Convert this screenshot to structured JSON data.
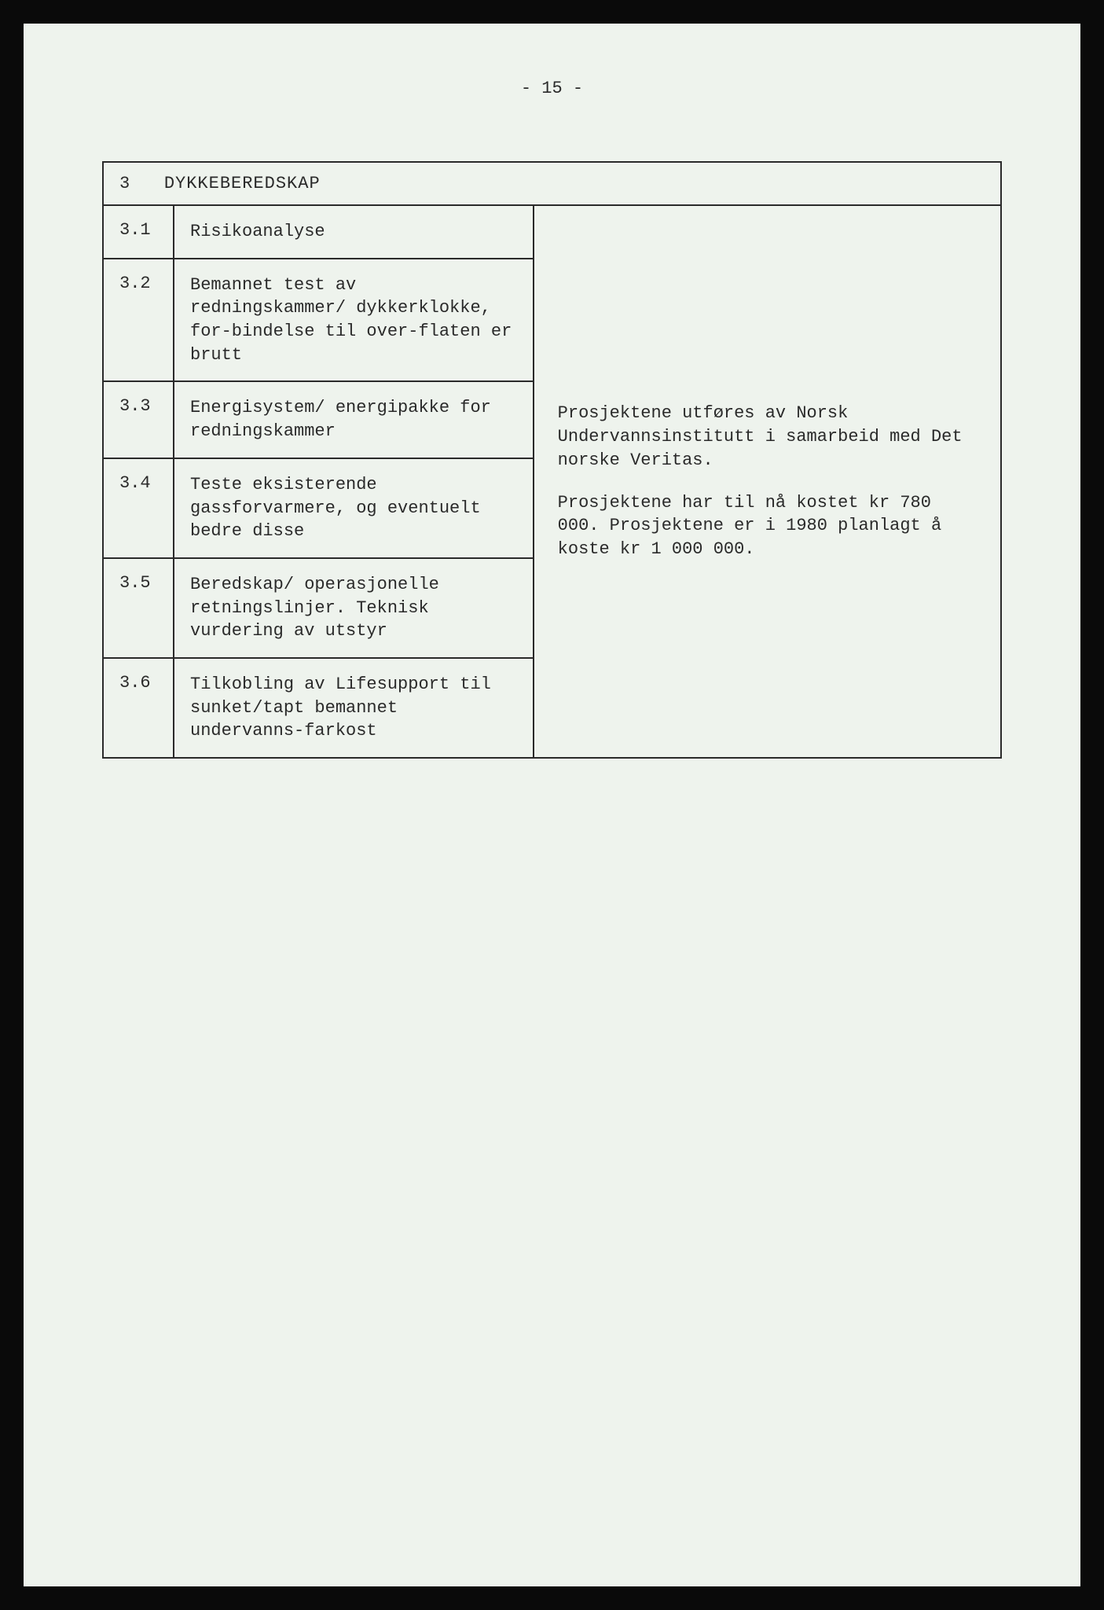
{
  "page_number": "- 15 -",
  "section": {
    "number": "3",
    "title": "DYKKEBEREDSKAP"
  },
  "rows": [
    {
      "number": "3.1",
      "content": "Risikoanalyse"
    },
    {
      "number": "3.2",
      "content": "Bemannet test av redningskammer/ dykkerklokke, for-bindelse til over-flaten er brutt"
    },
    {
      "number": "3.3",
      "content": "Energisystem/ energipakke for redningskammer"
    },
    {
      "number": "3.4",
      "content": "Teste eksisterende gassforvarmere, og eventuelt bedre disse"
    },
    {
      "number": "3.5",
      "content": "Beredskap/ operasjonelle retningslinjer. Teknisk vurdering av utstyr"
    },
    {
      "number": "3.6",
      "content": "Tilkobling av Lifesupport til sunket/tapt bemannet undervanns-farkost"
    }
  ],
  "right_panel": {
    "paragraph1": "Prosjektene utføres av Norsk Undervannsinstitutt i samarbeid med Det norske Veritas.",
    "paragraph2": "Prosjektene har til nå kostet kr 780 000. Prosjektene er i 1980 planlagt å koste kr 1 000 000."
  },
  "styling": {
    "background_color": "#eef3ed",
    "outer_background": "#0a0a0a",
    "text_color": "#2a2a2a",
    "border_color": "#2a2a2a",
    "font_family": "Courier New",
    "font_size": 22
  }
}
